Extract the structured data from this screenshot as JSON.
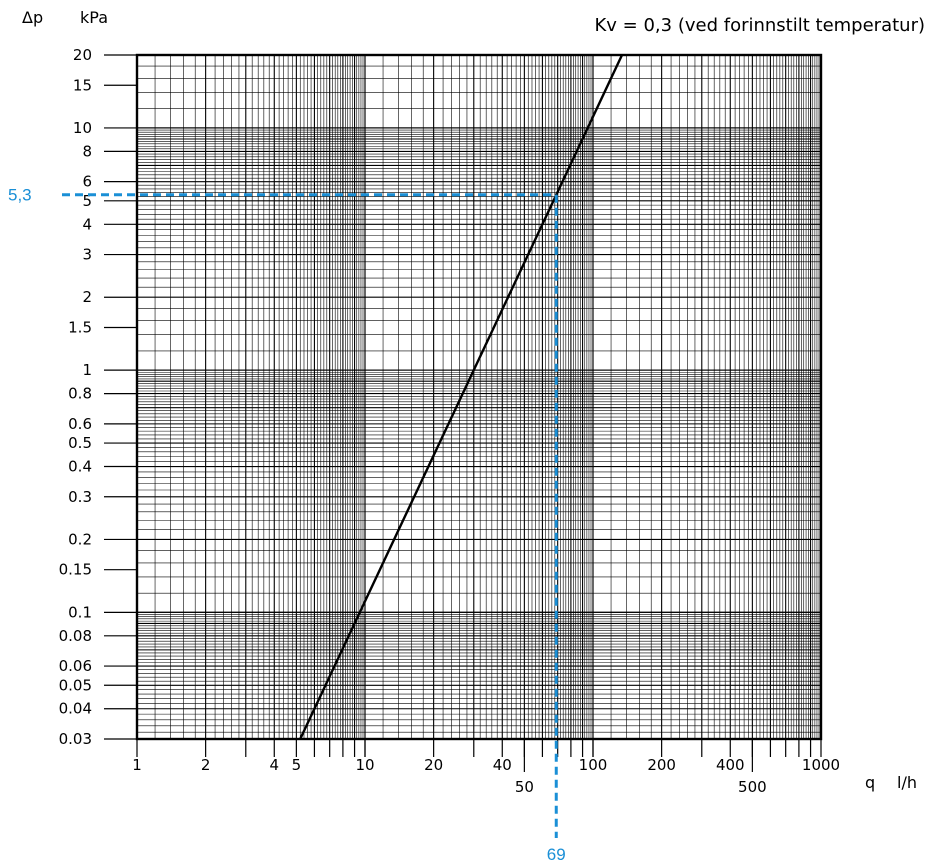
{
  "chart_data": {
    "type": "line",
    "title": "Kv = 0,3 (ved forinnstilt temperatur)",
    "xlabel": "q",
    "xunit": "l/h",
    "ylabel": "Δp",
    "yunit": "kPa",
    "x_scale": "log",
    "y_scale": "log",
    "xlim": [
      1,
      1000
    ],
    "ylim": [
      0.03,
      20
    ],
    "grid": true,
    "x_ticks": [
      {
        "value": 1,
        "label": "1",
        "row": 1
      },
      {
        "value": 2,
        "label": "2",
        "row": 1
      },
      {
        "value": 4,
        "label": "4",
        "row": 1
      },
      {
        "value": 5,
        "label": "5",
        "row": 1
      },
      {
        "value": 10,
        "label": "10",
        "row": 1
      },
      {
        "value": 20,
        "label": "20",
        "row": 1
      },
      {
        "value": 40,
        "label": "40",
        "row": 1
      },
      {
        "value": 50,
        "label": "50",
        "row": 2
      },
      {
        "value": 100,
        "label": "100",
        "row": 1
      },
      {
        "value": 200,
        "label": "200",
        "row": 1
      },
      {
        "value": 400,
        "label": "400",
        "row": 1
      },
      {
        "value": 500,
        "label": "500",
        "row": 2
      },
      {
        "value": 1000,
        "label": "1000",
        "row": 1
      }
    ],
    "y_ticks": [
      {
        "value": 20,
        "label": "20"
      },
      {
        "value": 15,
        "label": "15"
      },
      {
        "value": 10,
        "label": "10"
      },
      {
        "value": 8,
        "label": "8"
      },
      {
        "value": 6,
        "label": "6"
      },
      {
        "value": 5,
        "label": "5"
      },
      {
        "value": 4,
        "label": "4"
      },
      {
        "value": 3,
        "label": "3"
      },
      {
        "value": 2,
        "label": "2"
      },
      {
        "value": 1.5,
        "label": "1.5"
      },
      {
        "value": 1,
        "label": "1"
      },
      {
        "value": 0.8,
        "label": "0.8"
      },
      {
        "value": 0.6,
        "label": "0.6"
      },
      {
        "value": 0.5,
        "label": "0.5"
      },
      {
        "value": 0.4,
        "label": "0.4"
      },
      {
        "value": 0.3,
        "label": "0.3"
      },
      {
        "value": 0.2,
        "label": "0.2"
      },
      {
        "value": 0.15,
        "label": "0.15"
      },
      {
        "value": 0.1,
        "label": "0.1"
      },
      {
        "value": 0.08,
        "label": "0.08"
      },
      {
        "value": 0.06,
        "label": "0.06"
      },
      {
        "value": 0.05,
        "label": "0.05"
      },
      {
        "value": 0.04,
        "label": "0.04"
      },
      {
        "value": 0.03,
        "label": "0.03"
      }
    ],
    "series": [
      {
        "points": [
          {
            "x": 5.2,
            "y": 0.03
          },
          {
            "x": 69,
            "y": 5.3
          },
          {
            "x": 134,
            "y": 20
          }
        ],
        "color": "#000000"
      }
    ],
    "reading": {
      "x": 69,
      "y": 5.3,
      "x_label": "69",
      "y_label": "5,3",
      "color": "#1a8fd6"
    },
    "colors": {
      "grid": "#000000",
      "line": "#000000",
      "accent": "#1a8fd6"
    }
  }
}
